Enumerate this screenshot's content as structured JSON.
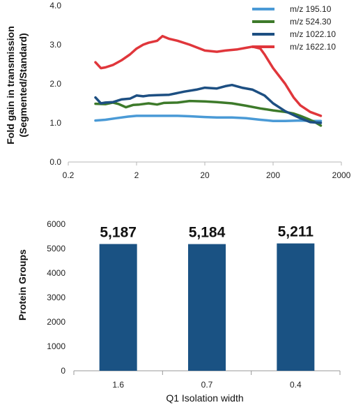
{
  "chart_data": [
    {
      "type": "line",
      "ylabel_line1": "Fold gain in transmission",
      "ylabel_line2": "(Segmented/Standard)",
      "xlabel": "",
      "x_scale": "log",
      "xlim": [
        0.2,
        2000
      ],
      "ylim": [
        0.0,
        4.0
      ],
      "x_ticks": [
        "0.2",
        "2",
        "20",
        "200",
        "2000"
      ],
      "y_ticks": [
        "0.0",
        "1.0",
        "2.0",
        "3.0",
        "4.0"
      ],
      "legend_position": "top-right",
      "series": [
        {
          "name": "m/z 195.10",
          "color": "#4a9ad6",
          "x": [
            0.5,
            0.7,
            1.0,
            1.5,
            2.0,
            3.0,
            5.0,
            8.0,
            12.0,
            20.0,
            30.0,
            50.0,
            80.0,
            130.0,
            200.0,
            300.0,
            500.0,
            800.0,
            1000.0
          ],
          "y": [
            1.06,
            1.08,
            1.12,
            1.16,
            1.18,
            1.18,
            1.18,
            1.18,
            1.17,
            1.15,
            1.14,
            1.14,
            1.12,
            1.08,
            1.05,
            1.05,
            1.06,
            1.05,
            1.05
          ]
        },
        {
          "name": "m/z 524.30",
          "color": "#3d7a2a",
          "x": [
            0.5,
            0.7,
            0.9,
            1.1,
            1.4,
            1.8,
            2.2,
            3.0,
            4.0,
            5.0,
            8.0,
            12.0,
            20.0,
            30.0,
            50.0,
            80.0,
            130.0,
            200.0,
            300.0,
            400.0,
            500.0,
            650.0,
            800.0,
            1000.0
          ],
          "y": [
            1.49,
            1.48,
            1.52,
            1.48,
            1.4,
            1.46,
            1.47,
            1.5,
            1.47,
            1.51,
            1.52,
            1.56,
            1.55,
            1.53,
            1.5,
            1.44,
            1.37,
            1.32,
            1.28,
            1.24,
            1.18,
            1.1,
            1.03,
            0.93
          ]
        },
        {
          "name": "m/z 1022.10",
          "color": "#1d4f82",
          "x": [
            0.5,
            0.6,
            0.7,
            0.9,
            1.2,
            1.6,
            2.0,
            2.5,
            3.0,
            4.0,
            6.0,
            10.0,
            15.0,
            20.0,
            30.0,
            40.0,
            50.0,
            70.0,
            100.0,
            150.0,
            200.0,
            300.0,
            500.0,
            700.0,
            1000.0
          ],
          "y": [
            1.65,
            1.5,
            1.52,
            1.53,
            1.6,
            1.62,
            1.7,
            1.68,
            1.7,
            1.71,
            1.72,
            1.8,
            1.85,
            1.9,
            1.88,
            1.94,
            1.97,
            1.9,
            1.85,
            1.7,
            1.5,
            1.3,
            1.12,
            1.02,
            1.0
          ]
        },
        {
          "name": "m/z 1622.10",
          "color": "#e0363b",
          "x": [
            0.5,
            0.6,
            0.7,
            0.9,
            1.2,
            1.6,
            2.0,
            2.5,
            3.0,
            4.0,
            4.8,
            6.0,
            8.0,
            12.0,
            20.0,
            30.0,
            40.0,
            60.0,
            80.0,
            100.0,
            130.0,
            150.0,
            200.0,
            300.0,
            400.0,
            500.0,
            700.0,
            1000.0
          ],
          "y": [
            2.55,
            2.4,
            2.42,
            2.48,
            2.6,
            2.75,
            2.9,
            3.0,
            3.05,
            3.1,
            3.22,
            3.15,
            3.1,
            3.0,
            2.85,
            2.82,
            2.85,
            2.88,
            2.92,
            2.95,
            2.9,
            2.75,
            2.4,
            2.0,
            1.65,
            1.45,
            1.28,
            1.18
          ]
        }
      ]
    },
    {
      "type": "bar",
      "xlabel": "Q1 Isolation width",
      "ylabel": "Protein Groups",
      "ylim": [
        0,
        6000
      ],
      "y_ticks": [
        "0",
        "1000",
        "2000",
        "3000",
        "4000",
        "5000",
        "6000"
      ],
      "categories": [
        "1.6",
        "0.7",
        "0.4"
      ],
      "values": [
        5187,
        5184,
        5211
      ],
      "data_labels": [
        "5,187",
        "5,184",
        "5,211"
      ],
      "bar_color": "#1a5283"
    }
  ]
}
